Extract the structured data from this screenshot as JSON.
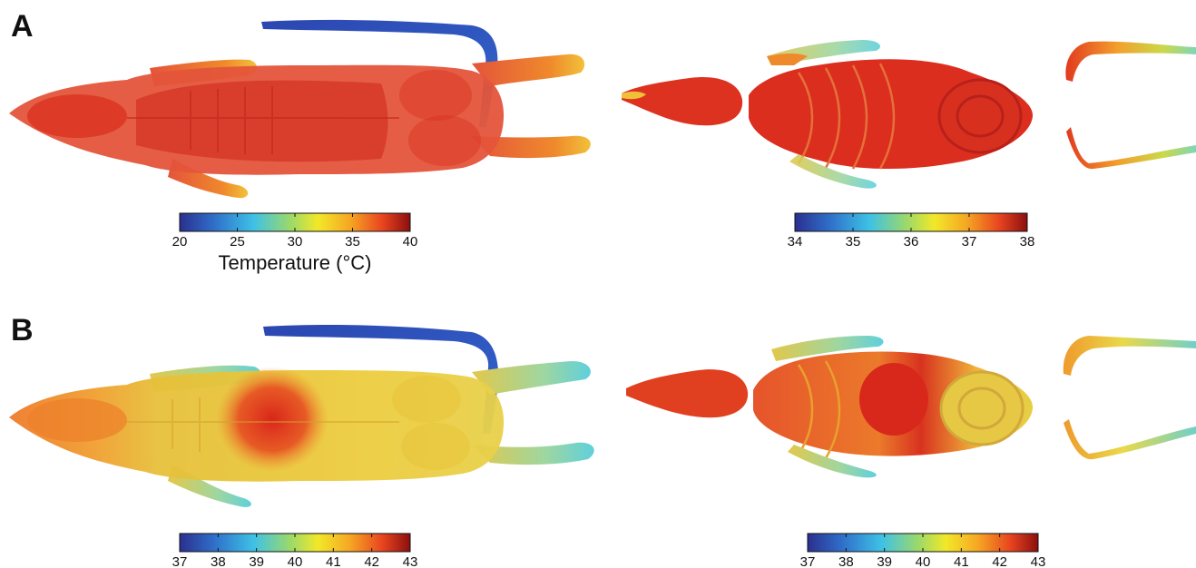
{
  "panels": [
    {
      "letter": "A",
      "colorbars": [
        {
          "min": 20,
          "max": 40,
          "ticks": [
            "20",
            "25",
            "30",
            "35",
            "40"
          ],
          "title": "Temperature (°C)"
        },
        {
          "min": 34,
          "max": 38,
          "ticks": [
            "34",
            "35",
            "36",
            "37",
            "38"
          ],
          "title": ""
        }
      ]
    },
    {
      "letter": "B",
      "colorbars": [
        {
          "min": 37,
          "max": 43,
          "ticks": [
            "37",
            "38",
            "39",
            "40",
            "41",
            "42",
            "43"
          ],
          "title": ""
        },
        {
          "min": 37,
          "max": 43,
          "ticks": [
            "37",
            "38",
            "39",
            "40",
            "41",
            "42",
            "43"
          ],
          "title": ""
        }
      ]
    }
  ],
  "colormap": [
    "#2b2f8f",
    "#2f6fc9",
    "#3ec1e6",
    "#9bd96a",
    "#f2e829",
    "#f5a623",
    "#e8441f",
    "#8b0f0f"
  ],
  "colors": {
    "hot_red": "#d9301e",
    "body_red": "#e4543a",
    "orange": "#ef8a2c",
    "yellow": "#e9d94a",
    "cyan": "#5fd0dc",
    "blue": "#3a59b8",
    "green_yellow": "#b9d65a"
  }
}
